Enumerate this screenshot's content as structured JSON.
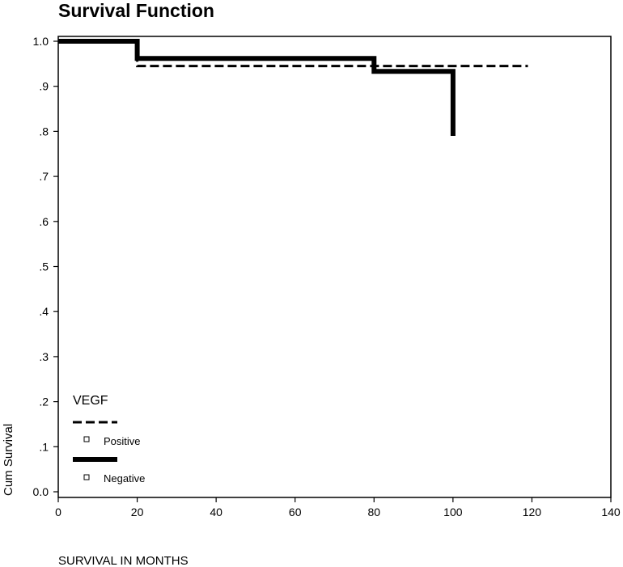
{
  "chart_data": {
    "type": "line",
    "title": "Survival Function",
    "xlabel": "SURVIVAL IN MONTHS",
    "ylabel": "Cum Survival",
    "xlim": [
      0,
      140
    ],
    "ylim": [
      0,
      1.0
    ],
    "xticks": [
      0,
      20,
      40,
      60,
      80,
      100,
      120,
      140
    ],
    "xtick_labels": [
      "0",
      "20",
      "40",
      "60",
      "80",
      "100",
      "120",
      "140"
    ],
    "yticks": [
      0,
      0.1,
      0.2,
      0.3,
      0.4,
      0.5,
      0.6,
      0.7,
      0.8,
      0.9,
      1.0
    ],
    "ytick_labels": [
      "0.0",
      ".1",
      ".2",
      ".3",
      ".4",
      ".5",
      ".6",
      ".7",
      ".8",
      ".9",
      "1.0"
    ],
    "grid": false,
    "legend": {
      "title": "VEGF",
      "placement": "bottom-left",
      "entries": [
        "Positive",
        "Negative"
      ]
    },
    "series": [
      {
        "name": "Positive",
        "style": "dashed",
        "steps": [
          [
            0,
            1.0
          ],
          [
            20,
            1.0
          ],
          [
            20,
            0.945
          ],
          [
            119,
            0.945
          ]
        ]
      },
      {
        "name": "Negative",
        "style": "solid",
        "steps": [
          [
            0,
            1.0
          ],
          [
            20,
            1.0
          ],
          [
            20,
            0.962
          ],
          [
            80,
            0.962
          ],
          [
            80,
            0.933
          ],
          [
            100,
            0.933
          ],
          [
            100,
            0.79
          ]
        ]
      }
    ]
  }
}
